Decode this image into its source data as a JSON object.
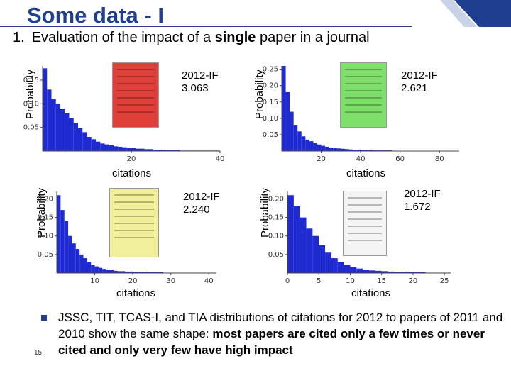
{
  "slide": {
    "title": "Some data - I",
    "subtitle_num": "1.",
    "subtitle_pre": "Evaluation of the impact of a ",
    "subtitle_bold": "single",
    "subtitle_post": " paper in a journal",
    "bullet_pre": "JSSC, TIT, TCAS-I, and TIA distributions of citations  for 2012 to papers of 2011 and 2010 show the same shape: ",
    "bullet_bold": "most papers are cited only a few times or never cited and only very few have high impact",
    "page_number": "15",
    "accent_color": "#1e3f8f"
  },
  "chart_data": [
    {
      "type": "bar",
      "ylabel": "Probability",
      "xlabel": "citations",
      "if_line1": "2012-IF",
      "if_line2": "3.063",
      "cover_color": "#e0403a",
      "bar_color": "#1f2bd0",
      "xlim": [
        0,
        40
      ],
      "ylim": [
        0,
        0.18
      ],
      "xticks": [
        "20",
        "40"
      ],
      "yticks": [
        "0.05",
        "0.10",
        "0.15"
      ],
      "x": [
        0,
        1,
        2,
        3,
        4,
        5,
        6,
        7,
        8,
        9,
        10,
        11,
        12,
        13,
        14,
        15,
        16,
        17,
        18,
        19,
        20,
        21,
        22,
        23,
        24,
        25,
        26,
        27,
        28,
        29,
        30,
        31,
        32,
        33,
        34,
        35,
        36,
        37,
        38,
        39
      ],
      "values": [
        0.175,
        0.13,
        0.11,
        0.1,
        0.09,
        0.08,
        0.07,
        0.06,
        0.048,
        0.04,
        0.03,
        0.025,
        0.02,
        0.016,
        0.014,
        0.012,
        0.01,
        0.009,
        0.008,
        0.007,
        0.006,
        0.005,
        0.005,
        0.004,
        0.004,
        0.003,
        0.003,
        0.002,
        0.002,
        0.002,
        0.002,
        0.001,
        0.001,
        0.001,
        0.001,
        0.001,
        0.001,
        0.001,
        0.001,
        0.001
      ]
    },
    {
      "type": "bar",
      "ylabel": "Probability",
      "xlabel": "citations",
      "if_line1": "2012-IF",
      "if_line2": "2.621",
      "cover_color": "#7ee06a",
      "bar_color": "#1f2bd0",
      "xlim": [
        0,
        90
      ],
      "ylim": [
        0,
        0.26
      ],
      "xticks": [
        "20",
        "40",
        "60",
        "80"
      ],
      "yticks": [
        "0.05",
        "0.10",
        "0.15",
        "0.20",
        "0.25"
      ],
      "x": [
        0,
        2,
        4,
        6,
        8,
        10,
        12,
        14,
        16,
        18,
        20,
        22,
        24,
        26,
        28,
        30,
        32,
        34,
        36,
        38,
        40,
        42,
        44,
        46,
        48,
        50,
        52,
        54,
        56,
        58,
        60,
        62,
        64,
        66,
        68,
        70,
        72,
        74,
        76,
        78,
        80,
        82,
        84,
        86,
        88
      ],
      "values": [
        0.26,
        0.18,
        0.12,
        0.08,
        0.06,
        0.045,
        0.035,
        0.03,
        0.025,
        0.02,
        0.016,
        0.013,
        0.011,
        0.009,
        0.008,
        0.007,
        0.006,
        0.005,
        0.004,
        0.004,
        0.003,
        0.003,
        0.003,
        0.002,
        0.002,
        0.002,
        0.002,
        0.002,
        0.001,
        0.001,
        0.001,
        0.001,
        0.001,
        0.001,
        0.001,
        0.001,
        0.001,
        0.001,
        0.001,
        0.001,
        0.001,
        0.001,
        0.001,
        0.001,
        0.001
      ]
    },
    {
      "type": "bar",
      "ylabel": "Probability",
      "xlabel": "citations",
      "if_line1": "2012-IF",
      "if_line2": "2.240",
      "cover_color": "#f2ef9a",
      "bar_color": "#1f2bd0",
      "xlim": [
        0,
        42
      ],
      "ylim": [
        0,
        0.22
      ],
      "xticks": [
        "10",
        "20",
        "30",
        "40"
      ],
      "yticks": [
        "0.05",
        "0.10",
        "0.15",
        "0.20"
      ],
      "x": [
        0,
        1,
        2,
        3,
        4,
        5,
        6,
        7,
        8,
        9,
        10,
        11,
        12,
        13,
        14,
        15,
        16,
        17,
        18,
        19,
        20,
        21,
        22,
        23,
        24,
        25,
        26,
        27,
        28,
        29,
        30,
        31,
        32,
        33,
        34,
        35,
        36,
        37,
        38,
        39,
        40
      ],
      "values": [
        0.21,
        0.17,
        0.14,
        0.1,
        0.08,
        0.065,
        0.05,
        0.04,
        0.03,
        0.022,
        0.018,
        0.014,
        0.011,
        0.009,
        0.008,
        0.006,
        0.005,
        0.005,
        0.004,
        0.004,
        0.003,
        0.003,
        0.003,
        0.002,
        0.002,
        0.002,
        0.002,
        0.002,
        0.001,
        0.001,
        0.001,
        0.001,
        0.001,
        0.001,
        0.001,
        0.001,
        0.001,
        0.001,
        0.001,
        0.001,
        0.001
      ]
    },
    {
      "type": "bar",
      "ylabel": "Probability",
      "xlabel": "citations",
      "if_line1": "2012-IF",
      "if_line2": "1.672",
      "cover_color": "#f4f4f4",
      "bar_color": "#1f2bd0",
      "xlim": [
        0,
        26
      ],
      "ylim": [
        0,
        0.22
      ],
      "xticks": [
        "0",
        "5",
        "10",
        "15",
        "20",
        "25"
      ],
      "yticks": [
        "0.05",
        "0.10",
        "0.15",
        "0.20"
      ],
      "x": [
        0,
        1,
        2,
        3,
        4,
        5,
        6,
        7,
        8,
        9,
        10,
        11,
        12,
        13,
        14,
        15,
        16,
        17,
        18,
        19,
        20,
        21,
        22,
        23,
        24,
        25
      ],
      "values": [
        0.21,
        0.18,
        0.15,
        0.12,
        0.1,
        0.075,
        0.055,
        0.04,
        0.03,
        0.022,
        0.016,
        0.012,
        0.009,
        0.007,
        0.006,
        0.005,
        0.004,
        0.003,
        0.003,
        0.002,
        0.002,
        0.002,
        0.001,
        0.001,
        0.001,
        0.001
      ]
    }
  ]
}
